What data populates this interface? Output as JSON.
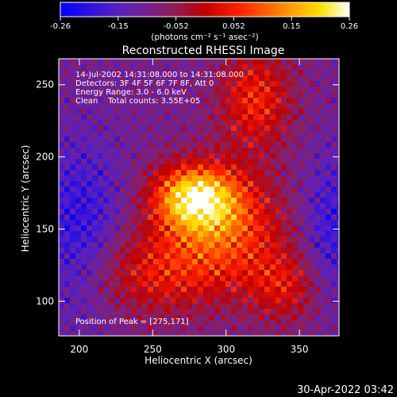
{
  "chart_data": {
    "type": "heatmap",
    "title": "Reconstructed RHESSI Image",
    "xlabel": "Heliocentric X (arcsec)",
    "ylabel": "Heliocentric Y (arcsec)",
    "xlim": [
      186,
      377
    ],
    "ylim": [
      76,
      268
    ],
    "x_ticks": [
      200,
      250,
      300,
      350
    ],
    "y_ticks": [
      100,
      150,
      200,
      250
    ],
    "colorbar": {
      "label": "(photons cm⁻² s⁻¹ asec⁻²)",
      "range": [
        -0.26,
        0.26
      ],
      "ticks": [
        "-0.26",
        "-0.15",
        "-0.052",
        "0.052",
        "0.15",
        "0.26"
      ]
    },
    "info_lines": [
      "14-Jul-2002 14:31:08.000 to 14:31:08.000",
      "Detectors: 3F 4F 5F 6F 7F 8F, Att 0",
      "Energy Range: 3.0 - 6.0 keV",
      "Clean    Total counts: 3.55E+05"
    ],
    "peak_label": "Position of Peak = [275,171]",
    "peak": [
      275,
      171
    ],
    "grid": false
  },
  "timestamp": "30-Apr-2022 03:42",
  "colors": {
    "background": "#000000",
    "foreground": "#ffffff",
    "colormap": [
      "#0000ff",
      "#7020b0",
      "#a02030",
      "#ff0000",
      "#ff8000",
      "#ffd000",
      "#ffffff"
    ]
  }
}
